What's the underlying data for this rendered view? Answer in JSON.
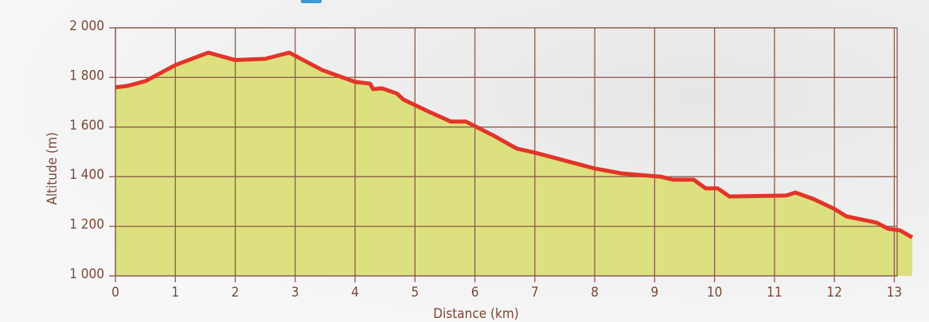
{
  "chart_data": {
    "type": "area",
    "x_label": "Distance (km)",
    "y_label": "Altitude (m)",
    "x": [
      0,
      0.2,
      0.5,
      1.0,
      1.55,
      2.0,
      2.5,
      2.9,
      3.45,
      4.0,
      4.25,
      4.3,
      4.45,
      4.7,
      4.8,
      4.9,
      5.25,
      5.6,
      5.85,
      6.3,
      6.7,
      7.0,
      7.5,
      8.0,
      8.45,
      9.1,
      9.3,
      9.65,
      9.85,
      10.05,
      10.25,
      11.2,
      11.35,
      11.65,
      12.0,
      12.2,
      12.7,
      12.9,
      13.1,
      13.3
    ],
    "values": [
      1760,
      1766,
      1785,
      1850,
      1900,
      1870,
      1875,
      1900,
      1830,
      1782,
      1775,
      1753,
      1756,
      1735,
      1712,
      1700,
      1660,
      1622,
      1622,
      1567,
      1513,
      1497,
      1465,
      1433,
      1413,
      1400,
      1388,
      1388,
      1353,
      1353,
      1320,
      1324,
      1336,
      1310,
      1270,
      1240,
      1215,
      1190,
      1183,
      1155
    ],
    "line_color": "#e3342a",
    "fill_color": "#dce07e",
    "grid": true,
    "xlim": [
      0,
      13.3
    ],
    "ylim": [
      1000,
      2000
    ],
    "xticks": [
      0,
      1,
      2,
      3,
      4,
      5,
      6,
      7,
      8,
      9,
      10,
      11,
      12,
      13
    ],
    "yticks": [
      {
        "value": 1000,
        "label": "1 000"
      },
      {
        "value": 1200,
        "label": "1 200"
      },
      {
        "value": 1400,
        "label": "1 400"
      },
      {
        "value": 1600,
        "label": "1 600"
      },
      {
        "value": 1800,
        "label": "1 800"
      },
      {
        "value": 2000,
        "label": "2 000"
      }
    ]
  }
}
